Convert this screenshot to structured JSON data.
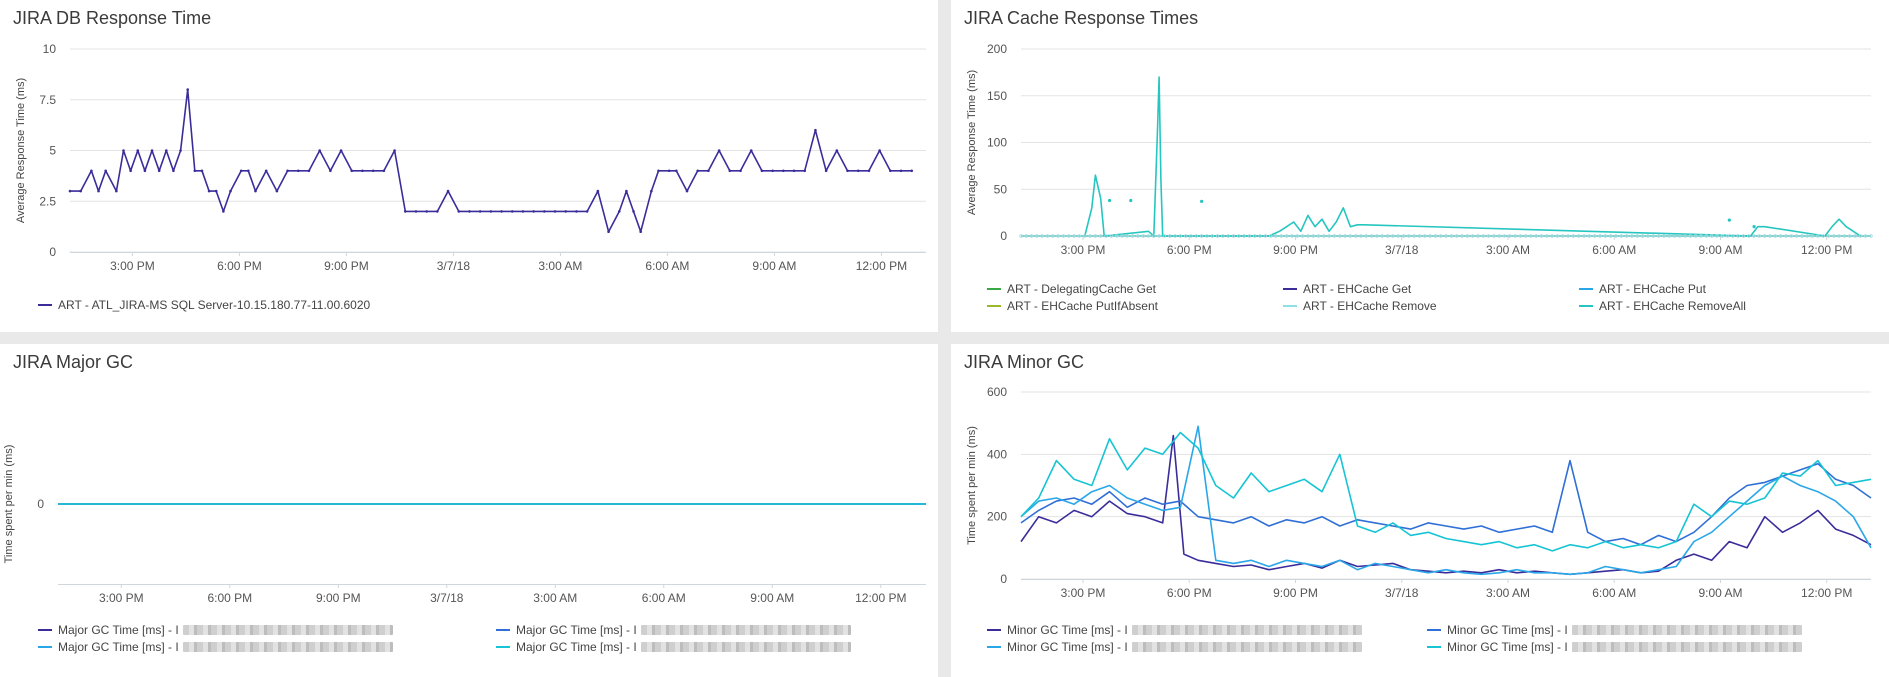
{
  "colors": {
    "purple": "#3a2d9a",
    "cyan": "#17c4d4",
    "blue": "#2f6fd6",
    "lightblue": "#2aa7e8",
    "green": "#3aa845",
    "olive": "#9ab82c",
    "teal": "#26c6c0",
    "grid": "#e3e3e3"
  },
  "panels": [
    {
      "title": "JIRA DB Response Time",
      "ylabel": "Average Response Time (ms)",
      "xticks": [
        "3:00 PM",
        "6:00 PM",
        "9:00 PM",
        "3/7/18",
        "3:00 AM",
        "6:00 AM",
        "9:00 AM",
        "12:00 PM"
      ],
      "legend": [
        {
          "label": "ART - ATL_JIRA-MS SQL Server-10.15.180.77-11.00.6020",
          "color": "#3a2d9a"
        }
      ]
    },
    {
      "title": "JIRA Cache Response Times",
      "ylabel": "Average Response Time (ms)",
      "xticks": [
        "3:00 PM",
        "6:00 PM",
        "9:00 PM",
        "3/7/18",
        "3:00 AM",
        "6:00 AM",
        "9:00 AM",
        "12:00 PM"
      ],
      "legend": [
        {
          "label": "ART - DelegatingCache Get",
          "color": "#3aa845"
        },
        {
          "label": "ART - EHCache Get",
          "color": "#3a2d9a"
        },
        {
          "label": "ART - EHCache Put",
          "color": "#2aa7e8"
        },
        {
          "label": "ART - EHCache PutIfAbsent",
          "color": "#9ab82c"
        },
        {
          "label": "ART - EHCache Remove",
          "color": "#8fe0e6"
        },
        {
          "label": "ART - EHCache RemoveAll",
          "color": "#26c6c0"
        }
      ]
    },
    {
      "title": "JIRA Major GC",
      "ylabel": "Time spent per min (ms)",
      "xticks": [
        "3:00 PM",
        "6:00 PM",
        "9:00 PM",
        "3/7/18",
        "3:00 AM",
        "6:00 AM",
        "9:00 AM",
        "12:00 PM"
      ],
      "legend": [
        {
          "label": "Major GC Time [ms] - I",
          "color": "#3a2d9a"
        },
        {
          "label": "Major GC Time [ms] - I",
          "color": "#2f6fd6"
        },
        {
          "label": "Major GC Time [ms] - I",
          "color": "#2aa7e8"
        },
        {
          "label": "Major GC Time [ms] - I",
          "color": "#17c4d4"
        }
      ]
    },
    {
      "title": "JIRA Minor GC",
      "ylabel": "Time spent per min (ms)",
      "xticks": [
        "3:00 PM",
        "6:00 PM",
        "9:00 PM",
        "3/7/18",
        "3:00 AM",
        "6:00 AM",
        "9:00 AM",
        "12:00 PM"
      ],
      "legend": [
        {
          "label": "Minor GC Time [ms] - I",
          "color": "#3a2d9a"
        },
        {
          "label": "Minor GC Time [ms] - I",
          "color": "#2f6fd6"
        },
        {
          "label": "Minor GC Time [ms] - I",
          "color": "#2aa7e8"
        },
        {
          "label": "Minor GC Time [ms] - I",
          "color": "#17c4d4"
        }
      ]
    }
  ],
  "chart_data": [
    {
      "type": "line",
      "title": "JIRA DB Response Time",
      "ylabel": "Average Response Time (ms)",
      "yticks": [
        "0",
        "2.5",
        "5",
        "7.5",
        "10"
      ],
      "ylim": [
        0,
        10
      ],
      "grid": true,
      "legend_position": "bottom",
      "x_range_hours": [
        0,
        24
      ],
      "series": [
        {
          "name": "ART - ATL_JIRA-MS SQL Server-10.15.180.77-11.00.6020",
          "color": "#3a2d9a",
          "x": [
            0,
            0.3,
            0.6,
            0.8,
            1.0,
            1.3,
            1.5,
            1.7,
            1.9,
            2.1,
            2.3,
            2.5,
            2.7,
            2.9,
            3.1,
            3.3,
            3.5,
            3.7,
            3.9,
            4.1,
            4.3,
            4.5,
            4.8,
            5.0,
            5.2,
            5.5,
            5.8,
            6.1,
            6.4,
            6.7,
            7.0,
            7.3,
            7.6,
            7.9,
            8.2,
            8.5,
            8.8,
            9.1,
            9.4,
            9.7,
            10.0,
            10.3,
            10.6,
            10.9,
            11.2,
            11.5,
            11.8,
            12.1,
            12.4,
            12.7,
            13.0,
            13.3,
            13.6,
            13.9,
            14.2,
            14.5,
            14.8,
            15.1,
            15.4,
            15.6,
            15.8,
            16.0,
            16.3,
            16.5,
            16.8,
            17.0,
            17.3,
            17.6,
            17.9,
            18.2,
            18.5,
            18.8,
            19.1,
            19.4,
            19.7,
            20.0,
            20.3,
            20.6,
            20.9,
            21.2,
            21.5,
            21.8,
            22.1,
            22.4,
            22.7,
            23.0,
            23.3,
            23.6
          ],
          "values": [
            3,
            3,
            4,
            3,
            4,
            3,
            5,
            4,
            5,
            4,
            5,
            4,
            5,
            4,
            5,
            8,
            4,
            4,
            3,
            3,
            2,
            3,
            4,
            4,
            3,
            4,
            3,
            4,
            4,
            4,
            5,
            4,
            5,
            4,
            4,
            4,
            4,
            5,
            2,
            2,
            2,
            2,
            3,
            2,
            2,
            2,
            2,
            2,
            2,
            2,
            2,
            2,
            2,
            2,
            2,
            2,
            3,
            1,
            2,
            3,
            2,
            1,
            3,
            4,
            4,
            4,
            3,
            4,
            4,
            5,
            4,
            4,
            5,
            4,
            4,
            4,
            4,
            4,
            6,
            4,
            5,
            4,
            4,
            4,
            5,
            4,
            4,
            4
          ]
        }
      ]
    },
    {
      "type": "line",
      "title": "JIRA Cache Response Times",
      "ylabel": "Average Response Time (ms)",
      "yticks": [
        "0",
        "50",
        "100",
        "150",
        "200"
      ],
      "ylim": [
        0,
        200
      ],
      "grid": true,
      "legend_position": "bottom",
      "x_range_hours": [
        0,
        24
      ],
      "series": [
        {
          "name": "ART - DelegatingCache Get",
          "color": "#3aa845",
          "x": [
            0,
            24
          ],
          "values": [
            0,
            0
          ]
        },
        {
          "name": "ART - EHCache Get",
          "color": "#3a2d9a",
          "x": [
            0,
            24
          ],
          "values": [
            0,
            0
          ]
        },
        {
          "name": "ART - EHCache Put",
          "color": "#2aa7e8",
          "x": [
            0,
            24
          ],
          "values": [
            0,
            0
          ]
        },
        {
          "name": "ART - EHCache PutIfAbsent",
          "color": "#9ab82c",
          "x": [
            0,
            24
          ],
          "values": [
            0,
            0
          ]
        },
        {
          "name": "ART - EHCache Remove",
          "color": "#8fe0e6",
          "x": [
            0,
            24
          ],
          "values": [
            0,
            0
          ]
        },
        {
          "name": "ART - EHCache RemoveAll",
          "color": "#26c6c0",
          "x": [
            1.8,
            2.0,
            2.1,
            2.25,
            2.35,
            3.6,
            3.75,
            3.85,
            3.9,
            3.95,
            4.0,
            7.0,
            7.3,
            7.5,
            7.7,
            7.9,
            8.1,
            8.3,
            8.5,
            8.7,
            8.9,
            9.1,
            9.3,
            9.5,
            9.7,
            20.6,
            20.8,
            21.0,
            22.7,
            22.9,
            23.1,
            23.3,
            23.5,
            23.7
          ],
          "values": [
            0,
            30,
            65,
            40,
            0,
            5,
            0,
            110,
            170,
            60,
            0,
            0,
            5,
            10,
            15,
            5,
            22,
            10,
            18,
            5,
            15,
            30,
            10,
            12,
            12,
            0,
            10,
            10,
            0,
            10,
            18,
            10,
            5,
            0
          ]
        }
      ],
      "scatter_points": [
        {
          "x": 2.5,
          "value": 38
        },
        {
          "x": 3.1,
          "value": 38
        },
        {
          "x": 5.1,
          "value": 37
        },
        {
          "x": 20.0,
          "value": 17
        },
        {
          "x": 20.7,
          "value": 10
        }
      ]
    },
    {
      "type": "line",
      "title": "JIRA Major GC",
      "ylabel": "Time spent per min (ms)",
      "yticks": [
        "0"
      ],
      "ylim": [
        -1,
        1
      ],
      "grid": false,
      "legend_position": "bottom",
      "x_range_hours": [
        0,
        24
      ],
      "series": [
        {
          "name": "Major GC Time [ms]",
          "color": "#3a2d9a",
          "x": [
            0,
            24
          ],
          "values": [
            0,
            0
          ]
        },
        {
          "name": "Major GC Time [ms]",
          "color": "#2f6fd6",
          "x": [
            0,
            24
          ],
          "values": [
            0,
            0
          ]
        },
        {
          "name": "Major GC Time [ms]",
          "color": "#2aa7e8",
          "x": [
            0,
            24
          ],
          "values": [
            0,
            0
          ]
        },
        {
          "name": "Major GC Time [ms]",
          "color": "#17c4d4",
          "x": [
            0,
            24
          ],
          "values": [
            0,
            0
          ]
        }
      ]
    },
    {
      "type": "line",
      "title": "JIRA Minor GC",
      "ylabel": "Time spent per min (ms)",
      "yticks": [
        "0",
        "200",
        "400",
        "600"
      ],
      "ylim": [
        0,
        600
      ],
      "grid": true,
      "legend_position": "bottom",
      "x_range_hours": [
        0,
        24
      ],
      "series": [
        {
          "name": "Minor GC Time [ms]",
          "color": "#3a2d9a",
          "x": [
            0,
            0.5,
            1,
            1.5,
            2,
            2.5,
            3,
            3.5,
            4,
            4.3,
            4.6,
            5,
            5.5,
            6,
            6.5,
            7,
            7.5,
            8,
            8.5,
            9,
            9.5,
            10,
            10.5,
            11,
            11.5,
            12,
            12.5,
            13,
            13.5,
            14,
            14.5,
            15,
            15.5,
            16,
            16.5,
            17,
            17.5,
            18,
            18.5,
            19,
            19.5,
            20,
            20.5,
            21,
            21.5,
            22,
            22.5,
            23,
            23.5,
            24
          ],
          "values": [
            120,
            200,
            180,
            220,
            200,
            250,
            210,
            200,
            180,
            460,
            80,
            60,
            50,
            40,
            45,
            30,
            40,
            50,
            35,
            60,
            40,
            45,
            50,
            30,
            25,
            20,
            25,
            20,
            30,
            20,
            25,
            20,
            15,
            20,
            25,
            30,
            20,
            25,
            60,
            80,
            60,
            120,
            100,
            200,
            150,
            180,
            220,
            160,
            140,
            110
          ]
        },
        {
          "name": "Minor GC Time [ms]",
          "color": "#2f6fd6",
          "x": [
            0,
            0.5,
            1,
            1.5,
            2,
            2.5,
            3,
            3.5,
            4,
            4.5,
            5,
            5.5,
            6,
            6.5,
            7,
            7.5,
            8,
            8.5,
            9,
            9.5,
            10,
            10.5,
            11,
            11.5,
            12,
            12.5,
            13,
            13.5,
            14,
            14.5,
            15,
            15.5,
            16,
            16.5,
            17,
            17.5,
            18,
            18.5,
            19,
            19.5,
            20,
            20.5,
            21,
            21.5,
            22,
            22.5,
            23,
            23.5,
            24
          ],
          "values": [
            180,
            220,
            250,
            260,
            240,
            280,
            230,
            260,
            240,
            250,
            200,
            190,
            180,
            200,
            170,
            190,
            180,
            200,
            170,
            190,
            180,
            170,
            160,
            180,
            170,
            160,
            170,
            150,
            160,
            170,
            150,
            380,
            150,
            120,
            130,
            110,
            140,
            120,
            150,
            200,
            260,
            300,
            310,
            330,
            350,
            370,
            320,
            300,
            260
          ]
        },
        {
          "name": "Minor GC Time [ms]",
          "color": "#2aa7e8",
          "x": [
            0,
            0.5,
            1,
            1.5,
            2,
            2.5,
            3,
            3.5,
            4,
            4.5,
            5,
            5.5,
            6,
            6.5,
            7,
            7.5,
            8,
            8.5,
            9,
            9.5,
            10,
            10.5,
            11,
            11.5,
            12,
            12.5,
            13,
            13.5,
            14,
            14.5,
            15,
            15.5,
            16,
            16.5,
            17,
            17.5,
            18,
            18.5,
            19,
            19.5,
            20,
            20.5,
            21,
            21.5,
            22,
            22.5,
            23,
            23.5,
            24
          ],
          "values": [
            200,
            250,
            260,
            240,
            280,
            300,
            260,
            240,
            220,
            230,
            490,
            60,
            50,
            60,
            40,
            60,
            50,
            40,
            60,
            30,
            50,
            40,
            30,
            20,
            30,
            20,
            15,
            20,
            30,
            20,
            20,
            15,
            20,
            40,
            30,
            20,
            30,
            40,
            120,
            150,
            200,
            250,
            300,
            330,
            300,
            280,
            250,
            200,
            100
          ]
        },
        {
          "name": "Minor GC Time [ms]",
          "color": "#17c4d4",
          "x": [
            0,
            0.5,
            1,
            1.5,
            2,
            2.5,
            3,
            3.5,
            4,
            4.5,
            5,
            5.5,
            6,
            6.5,
            7,
            7.5,
            8,
            8.5,
            9,
            9.5,
            10,
            10.5,
            11,
            11.5,
            12,
            12.5,
            13,
            13.5,
            14,
            14.5,
            15,
            15.5,
            16,
            16.5,
            17,
            17.5,
            18,
            18.5,
            19,
            19.5,
            20,
            20.5,
            21,
            21.5,
            22,
            22.5,
            23,
            23.5,
            24
          ],
          "values": [
            200,
            260,
            380,
            320,
            300,
            450,
            350,
            420,
            400,
            470,
            420,
            300,
            260,
            340,
            280,
            300,
            320,
            280,
            400,
            170,
            150,
            180,
            140,
            150,
            130,
            120,
            110,
            120,
            100,
            110,
            90,
            110,
            100,
            120,
            100,
            110,
            100,
            120,
            240,
            200,
            250,
            240,
            260,
            340,
            330,
            380,
            300,
            310,
            320
          ]
        }
      ]
    }
  ]
}
